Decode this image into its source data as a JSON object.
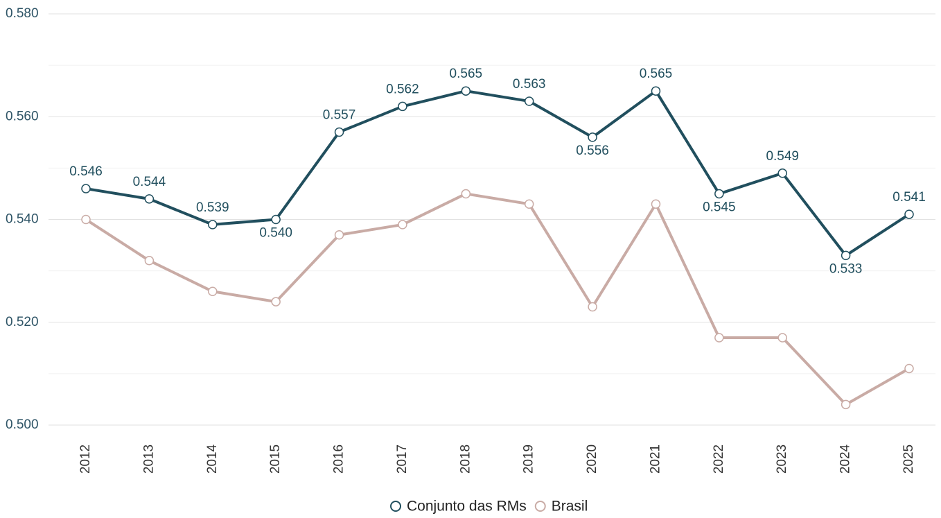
{
  "chart_data": {
    "type": "line",
    "categories": [
      "2012",
      "2013",
      "2014",
      "2015",
      "2016",
      "2017",
      "2018",
      "2019",
      "2020",
      "2021",
      "2022",
      "2023",
      "2024",
      "2025"
    ],
    "series": [
      {
        "name": "Conjunto das RMs",
        "color": "#214f5e",
        "values": [
          0.546,
          0.544,
          0.539,
          0.54,
          0.557,
          0.562,
          0.565,
          0.563,
          0.556,
          0.565,
          0.545,
          0.549,
          0.533,
          0.541
        ],
        "value_labels": [
          "0.546",
          "0.544",
          "0.539",
          "0.540",
          "0.557",
          "0.562",
          "0.565",
          "0.563",
          "0.556",
          "0.565",
          "0.545",
          "0.549",
          "0.533",
          "0.541"
        ]
      },
      {
        "name": "Brasil",
        "color": "#c9aba5",
        "values": [
          0.54,
          0.532,
          0.526,
          0.524,
          0.537,
          0.539,
          0.545,
          0.543,
          0.523,
          0.543,
          0.517,
          0.517,
          0.504,
          0.511
        ]
      }
    ],
    "ylim": [
      0.5,
      0.58
    ],
    "yticks": [
      {
        "value": 0.5,
        "label": "0.500"
      },
      {
        "value": 0.52,
        "label": "0.520"
      },
      {
        "value": 0.54,
        "label": "0.540"
      },
      {
        "value": 0.56,
        "label": "0.560"
      },
      {
        "value": 0.58,
        "label": "0.580"
      }
    ],
    "yminor": [
      0.51,
      0.53,
      0.55,
      0.57
    ],
    "grid": true,
    "legend": "bottom"
  }
}
